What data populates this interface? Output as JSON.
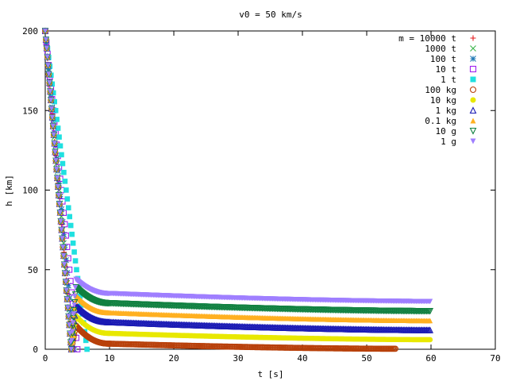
{
  "chart_data": {
    "type": "scatter",
    "title": "v0 = 50 km/s",
    "xlabel": "t [s]",
    "ylabel": "h [km]",
    "xlim": [
      0,
      70
    ],
    "ylim": [
      0,
      200
    ],
    "xticks": [
      0,
      10,
      20,
      30,
      40,
      50,
      60,
      70
    ],
    "yticks": [
      0,
      50,
      100,
      150,
      200
    ],
    "grid": false,
    "legend_position": "top-right",
    "series": [
      {
        "name": "m = 10000 t",
        "marker": "plus",
        "color": "#e41a1c",
        "t_end": 4.2,
        "h_end": 0
      },
      {
        "name": "1000 t",
        "marker": "cross",
        "color": "#3cb44b",
        "t_end": 4.3,
        "h_end": 0
      },
      {
        "name": "100 t",
        "marker": "star",
        "color": "#1f78b4",
        "t_end": 4.5,
        "h_end": 0
      },
      {
        "name": "10 t",
        "marker": "open-square",
        "color": "#a020f0",
        "t_end": 5.0,
        "h_end": 0
      },
      {
        "name": "1 t",
        "marker": "filled-square",
        "color": "#20e0e0",
        "t_end": 6.5,
        "h_end": 0
      },
      {
        "name": "100 kg",
        "marker": "open-circle",
        "color": "#b8400a",
        "t_end": 54.5,
        "h_end": 0.3,
        "h_knee": 15,
        "h_t10": 3.5
      },
      {
        "name": "10 kg",
        "marker": "filled-circle",
        "color": "#e8e800",
        "t_end": 60,
        "h_end": 6,
        "h_knee": 21,
        "h_t10": 10
      },
      {
        "name": "1 kg",
        "marker": "open-triangle",
        "color": "#1a1ab4",
        "t_end": 60,
        "h_end": 12,
        "h_knee": 28,
        "h_t10": 17
      },
      {
        "name": "0.1 kg",
        "marker": "filled-triangle",
        "color": "#ffb020",
        "t_end": 60,
        "h_end": 18,
        "h_knee": 34,
        "h_t10": 23
      },
      {
        "name": "10 g",
        "marker": "open-down-triangle",
        "color": "#108040",
        "t_end": 60,
        "h_end": 24,
        "h_knee": 39,
        "h_t10": 29
      },
      {
        "name": "1 g",
        "marker": "filled-down-triangle",
        "color": "#9f7fff",
        "t_end": 60,
        "h_end": 30,
        "h_knee": 44,
        "h_t10": 35
      }
    ]
  }
}
